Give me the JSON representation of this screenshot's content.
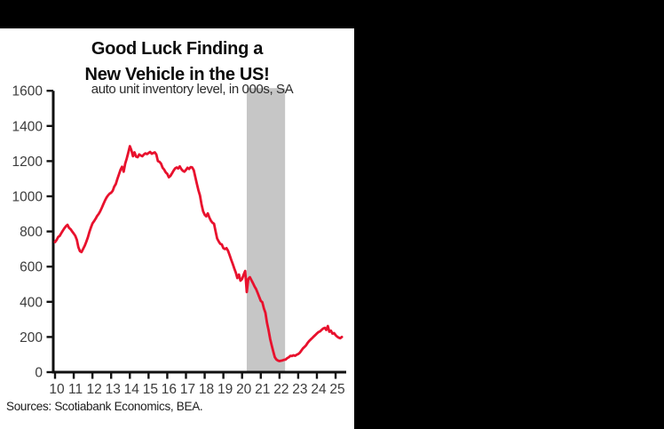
{
  "colors": {
    "background": "#000000",
    "panel": "#ffffff",
    "line_red": "#e8112d",
    "band_gray": "#c6c6c6",
    "axis": "#111111",
    "tick_text": "#3c3c3c"
  },
  "chart_data": {
    "type": "line",
    "title_lines": [
      "Good Luck Finding a",
      "New Vehicle in the US!"
    ],
    "subtitle": "auto unit inventory level, in 000s, SA",
    "source": "Sources: Scotiabank Economics, BEA.",
    "xlabel": "",
    "ylabel": "",
    "ylim": [
      0,
      1600
    ],
    "yticks": [
      0,
      200,
      400,
      600,
      800,
      1000,
      1200,
      1400,
      1600
    ],
    "xtick_labels": [
      "10",
      "11",
      "12",
      "13",
      "14",
      "15",
      "16",
      "17",
      "18",
      "19",
      "20",
      "21",
      "22",
      "23",
      "24",
      "25"
    ],
    "xlim_years": [
      2010,
      2025.6
    ],
    "grid": false,
    "legend_position": "none",
    "shaded_band": {
      "x_from_year": 2020.25,
      "x_to_year": 2022.3,
      "color": "#c6c6c6"
    },
    "series": [
      {
        "name": "auto unit inventory level, in 000s, SA",
        "color": "#e8112d",
        "x_start_year": 2010.0,
        "x_step_months": 1,
        "values": [
          740,
          752,
          768,
          775,
          790,
          805,
          818,
          830,
          838,
          820,
          812,
          800,
          788,
          775,
          752,
          710,
          688,
          683,
          700,
          718,
          740,
          765,
          795,
          822,
          845,
          858,
          872,
          888,
          900,
          915,
          935,
          955,
          975,
          992,
          1005,
          1015,
          1020,
          1032,
          1055,
          1070,
          1098,
          1125,
          1150,
          1168,
          1140,
          1185,
          1215,
          1248,
          1285,
          1262,
          1228,
          1250,
          1226,
          1222,
          1238,
          1232,
          1228,
          1238,
          1244,
          1240,
          1246,
          1252,
          1242,
          1246,
          1250,
          1238,
          1200,
          1196,
          1186,
          1162,
          1152,
          1136,
          1128,
          1108,
          1115,
          1130,
          1145,
          1158,
          1164,
          1158,
          1170,
          1155,
          1145,
          1140,
          1150,
          1162,
          1155,
          1166,
          1164,
          1148,
          1110,
          1070,
          1035,
          1004,
          955,
          915,
          895,
          886,
          903,
          880,
          861,
          850,
          844,
          800,
          760,
          743,
          730,
          726,
          705,
          700,
          705,
          690,
          665,
          640,
          615,
          590,
          565,
          535,
          555,
          520,
          530,
          555,
          575,
          455,
          530,
          540,
          523,
          506,
          488,
          472,
          450,
          428,
          405,
          398,
          362,
          338,
          280,
          240,
          190,
          152,
          118,
          85,
          72,
          66,
          63,
          65,
          67,
          70,
          72,
          80,
          85,
          93,
          92,
          96,
          93,
          99,
          103,
          110,
          122,
          135,
          143,
          152,
          165,
          177,
          186,
          194,
          203,
          211,
          220,
          228,
          232,
          240,
          248,
          252,
          240,
          262,
          230,
          236,
          219,
          222,
          210,
          202,
          196,
          193,
          200
        ]
      }
    ]
  }
}
